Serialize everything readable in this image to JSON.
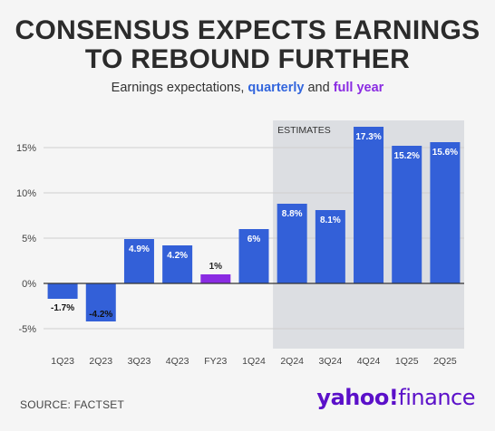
{
  "header": {
    "title_line1": "CONSENSUS EXPECTS EARNINGS",
    "title_line2": "TO REBOUND FURTHER",
    "subtitle_prefix": "Earnings expectations, ",
    "subtitle_quarterly": "quarterly",
    "subtitle_and": " and ",
    "subtitle_full_year": "full year"
  },
  "footer": {
    "source": "SOURCE: FACTSET",
    "logo_yahoo": "yahoo!",
    "logo_finance": "finance"
  },
  "colors": {
    "quarterly": "#3360d8",
    "full_year": "#8a2be2",
    "estimates_bg": "#dcdee2",
    "grid": "#cfcfcf",
    "baseline": "#333333"
  },
  "chart_data": {
    "type": "bar",
    "categories": [
      "1Q23",
      "2Q23",
      "3Q23",
      "4Q23",
      "FY23",
      "1Q24",
      "2Q24",
      "3Q24",
      "4Q24",
      "1Q25",
      "2Q25"
    ],
    "values": [
      -1.7,
      -4.2,
      4.9,
      4.2,
      1,
      6,
      8.8,
      8.1,
      17.3,
      15.2,
      15.6
    ],
    "data_labels": [
      "-1.7%",
      "-4.2%",
      "4.9%",
      "4.2%",
      "1%",
      "6%",
      "8.8%",
      "8.1%",
      "17.3%",
      "15.2%",
      "15.6%"
    ],
    "series_type": [
      "quarterly",
      "quarterly",
      "quarterly",
      "quarterly",
      "full_year",
      "quarterly",
      "quarterly",
      "quarterly",
      "quarterly",
      "quarterly",
      "quarterly"
    ],
    "ylim": [
      -7,
      18
    ],
    "yticks": [
      -5,
      0,
      5,
      10,
      15
    ],
    "ytick_labels": [
      "-5%",
      "0%",
      "5%",
      "10%",
      "15%"
    ],
    "estimates_label": "ESTIMATES",
    "estimates_start_index": 6,
    "grid": true
  }
}
